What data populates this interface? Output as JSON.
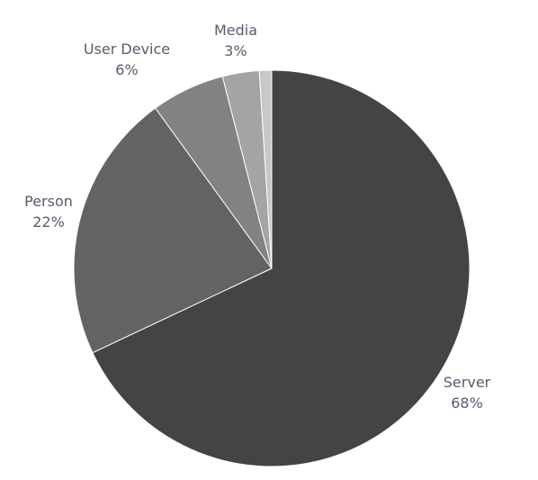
{
  "chart_data": {
    "type": "pie",
    "title": "",
    "slices": [
      {
        "name": "Server",
        "pct_label": "68%",
        "value": 68,
        "color": "#444444"
      },
      {
        "name": "Person",
        "pct_label": "22%",
        "value": 22,
        "color": "#636363"
      },
      {
        "name": "User Device",
        "pct_label": "6%",
        "value": 6,
        "color": "#828282"
      },
      {
        "name": "Media",
        "pct_label": "3%",
        "value": 3,
        "color": "#a4a4a4"
      },
      {
        "name": "",
        "pct_label": "",
        "value": 1,
        "color": "#c8c8c8"
      }
    ],
    "start_angle_deg": 0,
    "direction": "clockwise",
    "legend": "none"
  }
}
